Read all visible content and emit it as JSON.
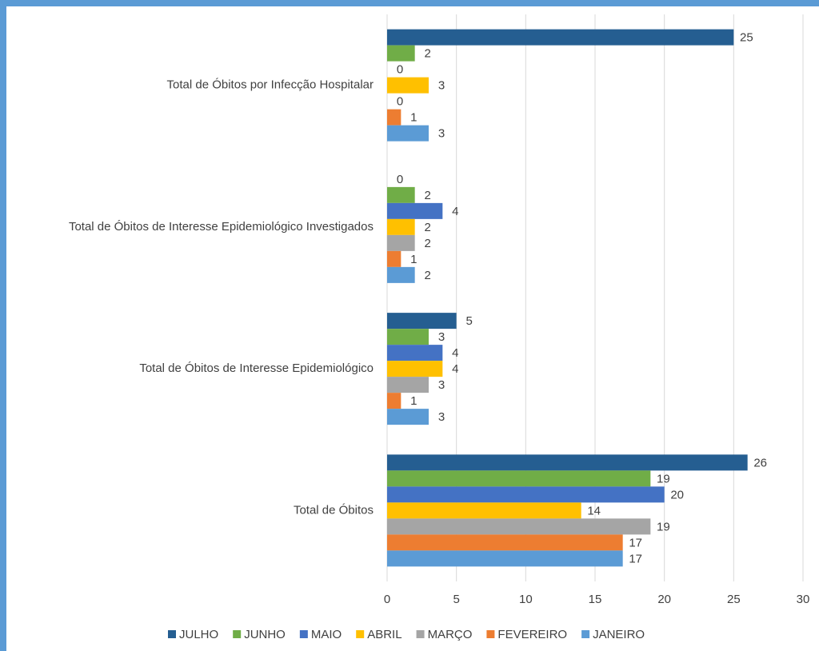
{
  "chart_data": {
    "type": "barh",
    "categories": [
      "Total de Óbitos por Infecção Hospitalar",
      "Total de Óbitos de Interesse Epidemiológico Investigados",
      "Total de Óbitos de Interesse Epidemiológico",
      "Total de Óbitos"
    ],
    "series": [
      {
        "name": "JULHO",
        "color": "#255e91",
        "values": [
          25,
          0,
          5,
          26
        ]
      },
      {
        "name": "JUNHO",
        "color": "#70ad47",
        "values": [
          2,
          2,
          3,
          19
        ]
      },
      {
        "name": "MAIO",
        "color": "#4472c4",
        "values": [
          0,
          4,
          4,
          20
        ]
      },
      {
        "name": "ABRIL",
        "color": "#ffc000",
        "values": [
          3,
          2,
          4,
          14
        ]
      },
      {
        "name": "MARÇO",
        "color": "#a5a5a5",
        "values": [
          0,
          2,
          3,
          19
        ]
      },
      {
        "name": "FEVEREIRO",
        "color": "#ed7d31",
        "values": [
          1,
          1,
          1,
          17
        ]
      },
      {
        "name": "JANEIRO",
        "color": "#5b9bd5",
        "values": [
          3,
          2,
          3,
          17
        ]
      }
    ],
    "xlim": [
      0,
      30
    ],
    "xticks": [
      0,
      5,
      10,
      15,
      20,
      25,
      30
    ],
    "grid": true,
    "legend": "bottom"
  }
}
